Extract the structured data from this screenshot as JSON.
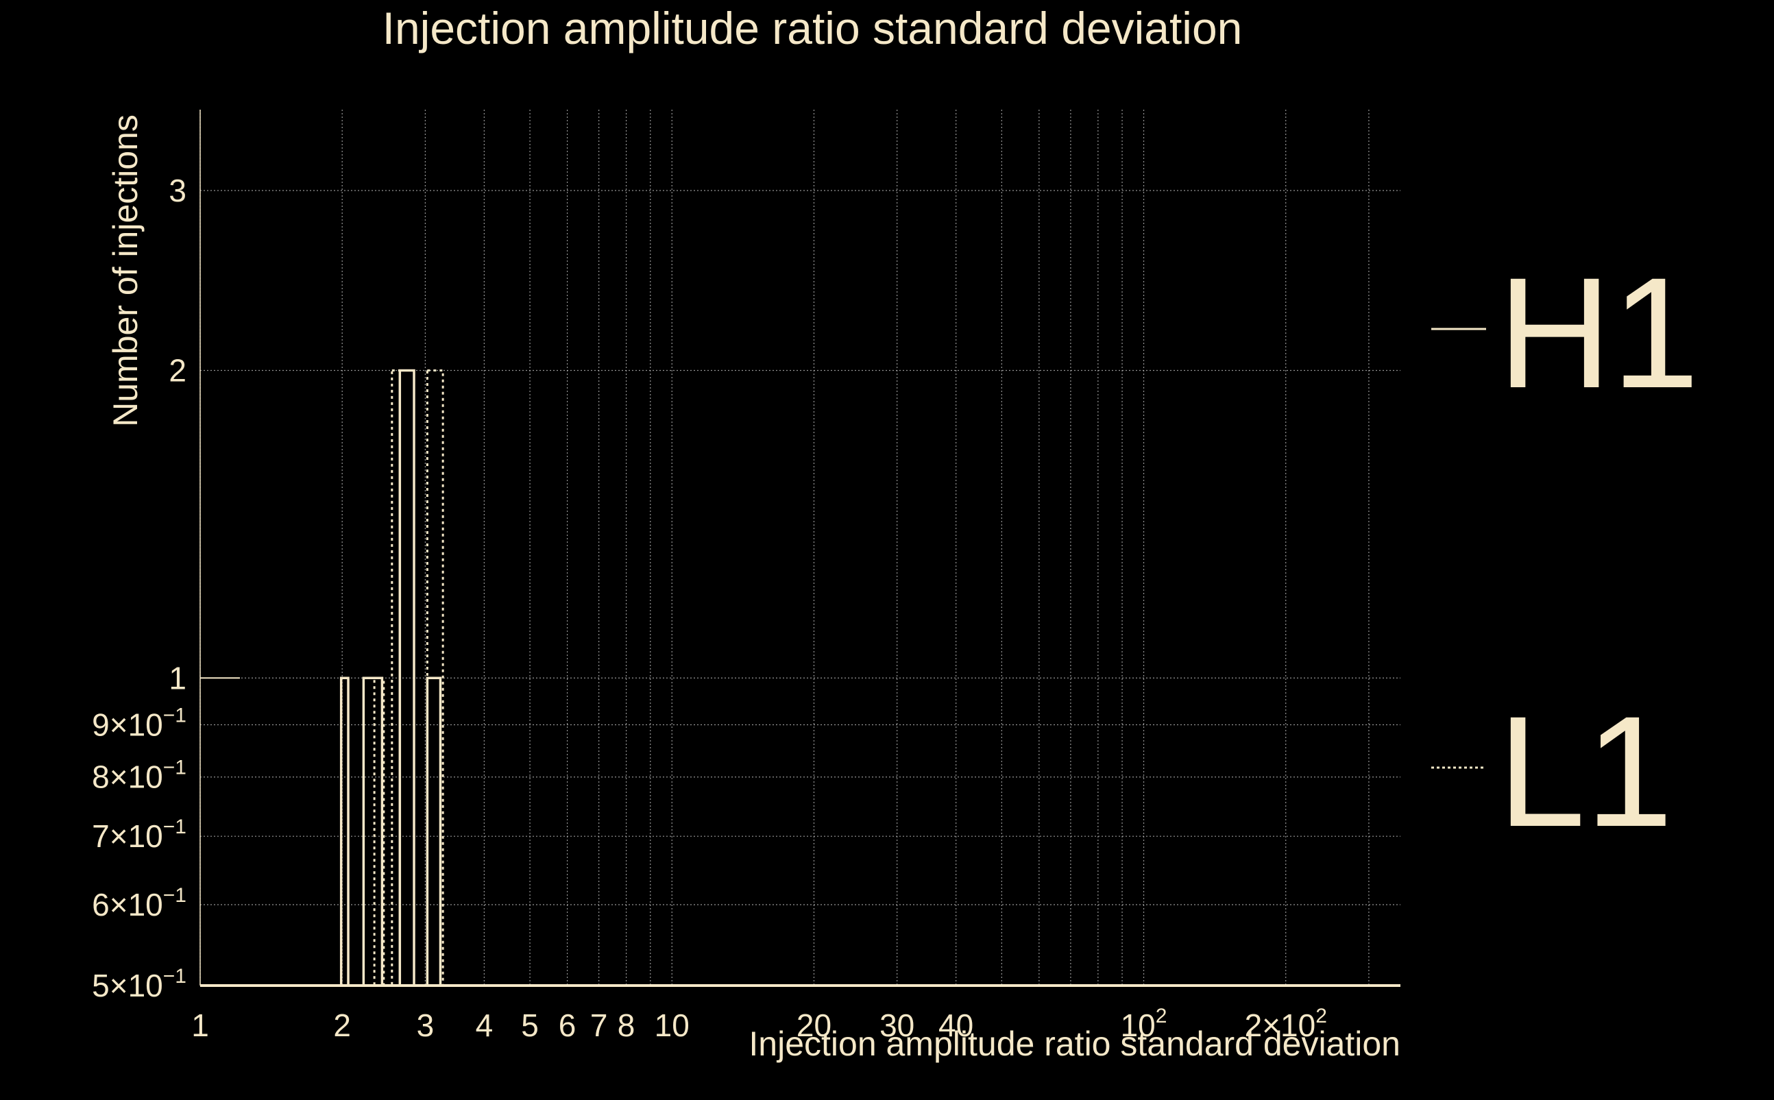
{
  "chart_data": {
    "type": "bar",
    "title": "Injection amplitude ratio standard deviation",
    "xlabel": "Injection amplitude ratio standard deviation",
    "ylabel": "Number of injections",
    "x_scale": "log",
    "y_scale": "log",
    "xlim": [
      1,
      350
    ],
    "ylim": [
      0.5,
      3.6
    ],
    "grid": true,
    "legend_position": "right",
    "x_ticks": [
      {
        "value": 1,
        "label": "1"
      },
      {
        "value": 2,
        "label": "2"
      },
      {
        "value": 3,
        "label": "3"
      },
      {
        "value": 4,
        "label": "4"
      },
      {
        "value": 5,
        "label": "5"
      },
      {
        "value": 6,
        "label": "6"
      },
      {
        "value": 7,
        "label": "7"
      },
      {
        "value": 8,
        "label": "8"
      },
      {
        "value": 10,
        "label": "10"
      },
      {
        "value": 20,
        "label": "20"
      },
      {
        "value": 30,
        "label": "30"
      },
      {
        "value": 40,
        "label": "40"
      },
      {
        "value": 100,
        "label": "10",
        "sup": "2"
      },
      {
        "value": 200,
        "label": "2×10",
        "sup": "2"
      }
    ],
    "x_minor_grid": [
      9,
      50,
      60,
      70,
      80,
      90,
      300
    ],
    "y_ticks": [
      {
        "value": 0.5,
        "label": "5×10",
        "sup": "−1"
      },
      {
        "value": 0.6,
        "label": "6×10",
        "sup": "−1"
      },
      {
        "value": 0.7,
        "label": "7×10",
        "sup": "−1"
      },
      {
        "value": 0.8,
        "label": "8×10",
        "sup": "−1"
      },
      {
        "value": 0.9,
        "label": "9×10",
        "sup": "−1"
      },
      {
        "value": 1,
        "label": "1"
      },
      {
        "value": 2,
        "label": "2"
      },
      {
        "value": 3,
        "label": "3"
      }
    ],
    "series": [
      {
        "name": "H1",
        "style": "solid",
        "bins": [
          {
            "x0": 1.99,
            "x1": 2.06,
            "value": 1
          },
          {
            "x0": 2.22,
            "x1": 2.43,
            "value": 1
          },
          {
            "x0": 2.65,
            "x1": 2.84,
            "value": 2
          },
          {
            "x0": 3.03,
            "x1": 3.23,
            "value": 1
          }
        ]
      },
      {
        "name": "L1",
        "style": "dotted",
        "bins": [
          {
            "x0": 2.34,
            "x1": 2.45,
            "value": 1
          },
          {
            "x0": 2.55,
            "x1": 2.84,
            "value": 2
          },
          {
            "x0": 3.03,
            "x1": 3.27,
            "value": 2
          }
        ]
      }
    ],
    "colors": {
      "background": "#000000",
      "foreground": "#f5e8c8",
      "grid": "#bdbdbd"
    }
  }
}
